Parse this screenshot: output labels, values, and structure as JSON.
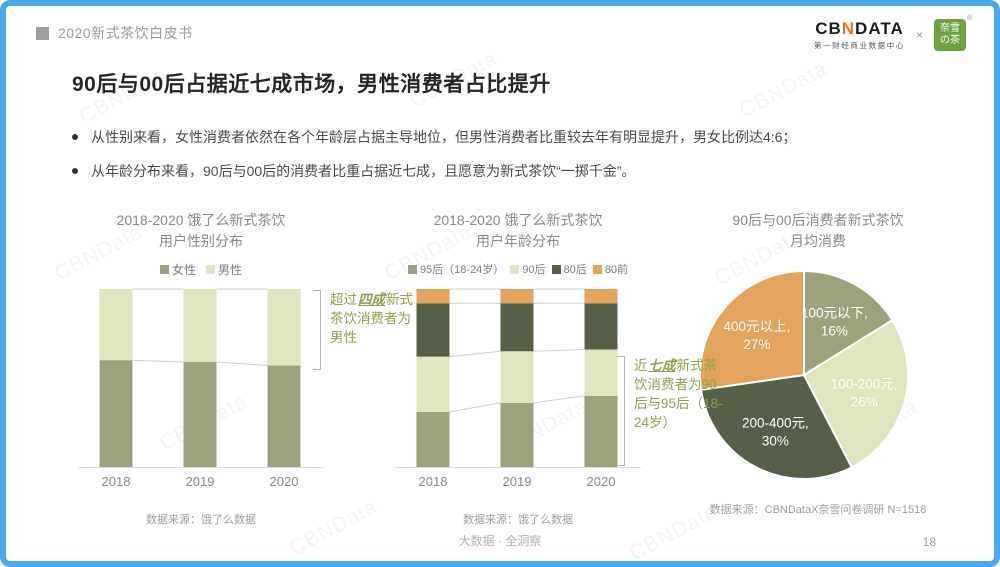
{
  "accent_border_color": "#4FA8EC",
  "watermark": "CBNData",
  "header": {
    "tag": "2020新式茶饮白皮书",
    "logo": {
      "cbn_left": "CB",
      "cbn_n": "N",
      "cbn_right": "DATA",
      "cbn_sub": "第一财经商业数据中心",
      "multiply": "×",
      "partner_line1": "奈雪",
      "partner_line2": "の茶",
      "partner_reg": "®",
      "partner_color": "#6FA23F"
    }
  },
  "title": "90后与00后占据近七成市场，男性消费者占比提升",
  "bullets": [
    "从性别来看，女性消费者依然在各个年龄层占据主导地位，但男性消费者比重较去年有明显提升，男女比例达4:6；",
    "从年龄分布来看，90后与00后的消费者比重占据近七成，且愿意为新式茶饮“一掷千金”。"
  ],
  "chart_data": [
    {
      "type": "bar",
      "stacked": true,
      "title_lines": [
        "2018-2020 饿了么新式茶饮",
        "用户性别分布"
      ],
      "categories": [
        "2018",
        "2019",
        "2020"
      ],
      "unit": "%",
      "ylim": [
        0,
        100
      ],
      "grid": false,
      "legend_position": "top",
      "series": [
        {
          "name": "女性",
          "color": "#9AA37E",
          "values": [
            60,
            59,
            57
          ]
        },
        {
          "name": "男性",
          "color": "#DEE5BF",
          "values": [
            40,
            41,
            43
          ]
        }
      ],
      "annotation": {
        "prefix": "超过",
        "emph": "四成",
        "suffix": "新式茶饮消费者为男性"
      },
      "source": "数据来源：饿了么数据"
    },
    {
      "type": "bar",
      "stacked": true,
      "title_lines": [
        "2018-2020 饿了么新式茶饮",
        "用户年龄分布"
      ],
      "categories": [
        "2018",
        "2019",
        "2020"
      ],
      "unit": "%",
      "ylim": [
        0,
        100
      ],
      "grid": false,
      "legend_position": "top",
      "series": [
        {
          "name": "95后（18-24岁）",
          "color": "#9AA37E",
          "values": [
            31,
            36,
            40
          ]
        },
        {
          "name": "90后",
          "color": "#DEE5BF",
          "values": [
            31,
            29,
            26
          ]
        },
        {
          "name": "80后",
          "color": "#575F48",
          "values": [
            30,
            27,
            26
          ]
        },
        {
          "name": "80前",
          "color": "#E4A45D",
          "values": [
            8,
            8,
            8
          ]
        }
      ],
      "annotation": {
        "prefix": "近",
        "emph": "七成",
        "suffix": "新式茶饮消费者为90后与95后（18-24岁）"
      },
      "source": "数据来源：饿了么数据"
    },
    {
      "type": "pie",
      "title_lines": [
        "90后与00后消费者新式茶饮",
        "月均消费"
      ],
      "slices": [
        {
          "label": "100元以下",
          "value": 16,
          "color": "#9AA37E"
        },
        {
          "label": "100-200元",
          "value": 26,
          "color": "#DEE5BF"
        },
        {
          "label": "200-400元",
          "value": 30,
          "color": "#575F48"
        },
        {
          "label": "400元以上",
          "value": 27,
          "color": "#E4A45D"
        }
      ],
      "label_color": "#FFFFFF",
      "source": "数据来源：CBNDataX奈雪问卷调研 N=1518"
    }
  ],
  "footer": {
    "center": "大数据 · 全洞察",
    "page_number": "18"
  }
}
